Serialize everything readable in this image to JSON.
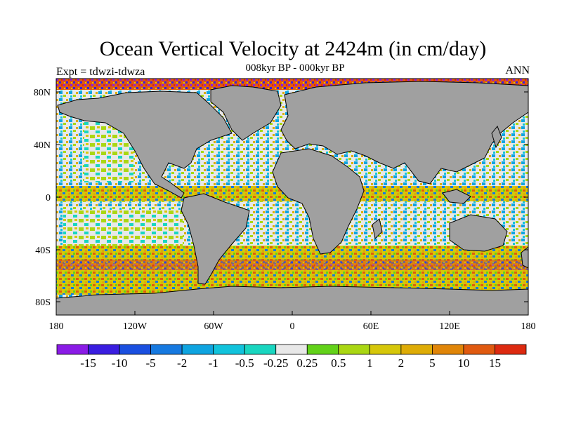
{
  "title": "Ocean Vertical Velocity at 2424m (in cm/day)",
  "subtitle": "008kyr BP - 000kyr BP",
  "left_label": "Expt = tdwzi-tdwza",
  "right_label": "ANN",
  "axes": {
    "lat_ticks": [
      "80N",
      "40N",
      "0",
      "40S",
      "80S"
    ],
    "lon_ticks": [
      "180",
      "120W",
      "60W",
      "0",
      "60E",
      "120E",
      "180"
    ]
  },
  "colors": {
    "land": "#a0a0a0",
    "coast": "#000000"
  },
  "colorbar": {
    "labels": [
      "-15",
      "-10",
      "-5",
      "-2",
      "-1",
      "-0.5",
      "-0.25",
      "0.25",
      "0.5",
      "1",
      "2",
      "5",
      "10",
      "15"
    ],
    "colors": [
      "#8a1be6",
      "#3a1de0",
      "#1a4fe0",
      "#1679e0",
      "#0ea4e0",
      "#11c3dc",
      "#19d6c0",
      "#e8e8e8",
      "#62d219",
      "#aad713",
      "#d6c70a",
      "#deac06",
      "#e08508",
      "#e05a10",
      "#dd2a10"
    ]
  }
}
